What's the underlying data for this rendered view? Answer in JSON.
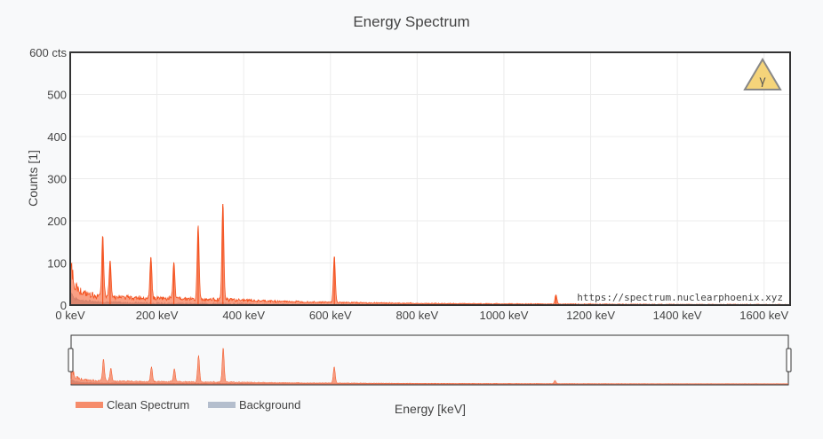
{
  "chart_data": {
    "type": "area",
    "title": "Energy Spectrum",
    "xlabel": "Energy [keV]",
    "ylabel": "Counts [1]",
    "xlim": [
      0,
      1660
    ],
    "ylim": [
      0,
      600
    ],
    "x_ticks": [
      0,
      200,
      400,
      600,
      800,
      1000,
      1200,
      1400,
      1600
    ],
    "x_tick_labels": [
      "0 keV",
      "200 keV",
      "400 keV",
      "600 keV",
      "800 keV",
      "1000 keV",
      "1200 keV",
      "1400 keV",
      "1600 keV"
    ],
    "y_ticks": [
      0,
      100,
      200,
      300,
      400,
      500,
      600
    ],
    "y_tick_labels": [
      "0",
      "100",
      "200",
      "300",
      "400",
      "500",
      "600 cts"
    ],
    "grid": true,
    "legend_position": "bottom-left",
    "series": [
      {
        "name": "Clean Spectrum",
        "color": "#f4511e",
        "peaks": [
          {
            "x": 75,
            "y": 158
          },
          {
            "x": 92,
            "y": 105
          },
          {
            "x": 186,
            "y": 112
          },
          {
            "x": 239,
            "y": 100
          },
          {
            "x": 295,
            "y": 185
          },
          {
            "x": 352,
            "y": 240
          },
          {
            "x": 609,
            "y": 115
          },
          {
            "x": 1120,
            "y": 24
          }
        ],
        "continuum": [
          {
            "x": 0,
            "y": 100
          },
          {
            "x": 10,
            "y": 40
          },
          {
            "x": 30,
            "y": 24
          },
          {
            "x": 60,
            "y": 18
          },
          {
            "x": 100,
            "y": 16
          },
          {
            "x": 150,
            "y": 14
          },
          {
            "x": 200,
            "y": 13
          },
          {
            "x": 300,
            "y": 11
          },
          {
            "x": 400,
            "y": 9
          },
          {
            "x": 500,
            "y": 7
          },
          {
            "x": 620,
            "y": 5
          },
          {
            "x": 800,
            "y": 3
          },
          {
            "x": 1000,
            "y": 2
          },
          {
            "x": 1300,
            "y": 1
          },
          {
            "x": 1660,
            "y": 0.5
          }
        ]
      },
      {
        "name": "Background",
        "color": "#a8b4c4",
        "continuum": [
          {
            "x": 0,
            "y": 30
          },
          {
            "x": 10,
            "y": 12
          },
          {
            "x": 30,
            "y": 8
          },
          {
            "x": 60,
            "y": 5
          },
          {
            "x": 100,
            "y": 4
          },
          {
            "x": 200,
            "y": 2
          },
          {
            "x": 400,
            "y": 1
          },
          {
            "x": 800,
            "y": 0.5
          },
          {
            "x": 1660,
            "y": 0.2
          }
        ]
      }
    ],
    "watermark": "https://spectrum.nuclearphoenix.xyz",
    "logo_symbol": "γ"
  }
}
